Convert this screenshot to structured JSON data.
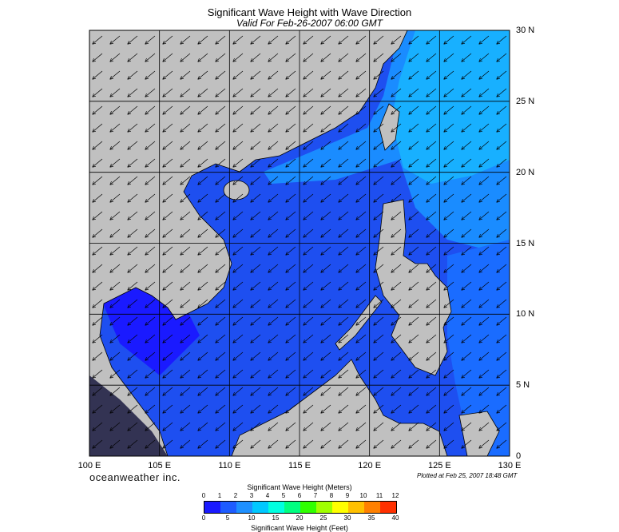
{
  "title": "Significant Wave Height with Wave Direction",
  "subtitle": "Valid For Feb-26-2007 06:00 GMT",
  "brand": "oceanweather inc.",
  "plotted": "Plotted at Feb 25, 2007 18:48 GMT",
  "lon_labels": [
    "100 E",
    "105 E",
    "110 E",
    "115 E",
    "120 E",
    "125 E",
    "130 E"
  ],
  "lat_labels": [
    "30 N",
    "25 N",
    "20 N",
    "15 N",
    "10 N",
    "5 N",
    "0"
  ],
  "scale": {
    "title_meters": "Significant Wave Height (Meters)",
    "title_feet": "Significant Wave Height (Feet)",
    "meters_ticks": [
      "0",
      "1",
      "2",
      "3",
      "4",
      "5",
      "6",
      "7",
      "8",
      "9",
      "10",
      "11",
      "12"
    ],
    "feet_ticks": [
      "0",
      "5",
      "10",
      "15",
      "20",
      "25",
      "30",
      "35",
      "40"
    ],
    "colors": [
      "#1a1aff",
      "#1e5cff",
      "#1e90ff",
      "#00c8ff",
      "#00ffe0",
      "#00ff80",
      "#30ff00",
      "#a0ff00",
      "#ffff00",
      "#ffc000",
      "#ff8000",
      "#ff3000"
    ]
  },
  "colors": {
    "land": "#c0c0c0",
    "deep_sea": "#1a1aff",
    "mid_sea": "#1c4cf0",
    "light_sea": "#1a8cff",
    "lighter_sea": "#18a8ff"
  }
}
